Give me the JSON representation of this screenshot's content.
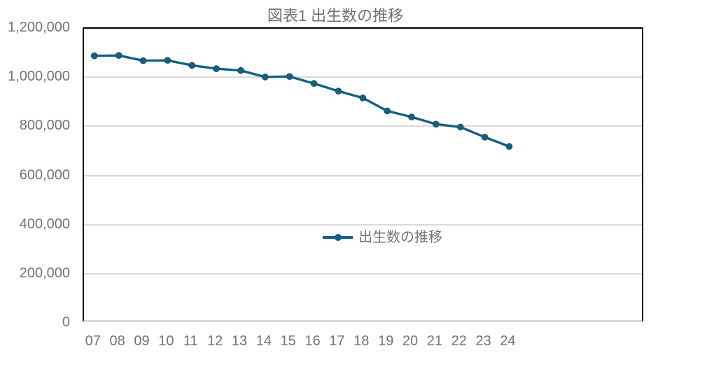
{
  "chart_data": {
    "type": "line",
    "title": "図表1 出生数の推移",
    "categories": [
      "07",
      "08",
      "09",
      "10",
      "11",
      "12",
      "13",
      "14",
      "15",
      "16",
      "17",
      "18",
      "19",
      "20",
      "21",
      "22",
      "23",
      "24"
    ],
    "series": [
      {
        "name": "出生数の推移",
        "values": [
          1089818,
          1091156,
          1070036,
          1071305,
          1050807,
          1037232,
          1029817,
          1003609,
          1005721,
          977242,
          946146,
          918400,
          865239,
          840835,
          811622,
          799728,
          758631,
          720988
        ]
      }
    ],
    "xlabel": "",
    "ylabel": "",
    "ylim": [
      0,
      1200000
    ],
    "ytick_interval": 200000,
    "ytick_labels": [
      "0",
      "200,000",
      "400,000",
      "600,000",
      "800,000",
      "1,000,000",
      "1,200,000"
    ],
    "grid": "horizontal",
    "legend_position": "center-inside",
    "marker": "circle",
    "colors": {
      "series": "#156082",
      "grid": "#D9D9D9",
      "text": "#737373",
      "plot_border": "#000000",
      "background": "#FFFFFF"
    }
  }
}
